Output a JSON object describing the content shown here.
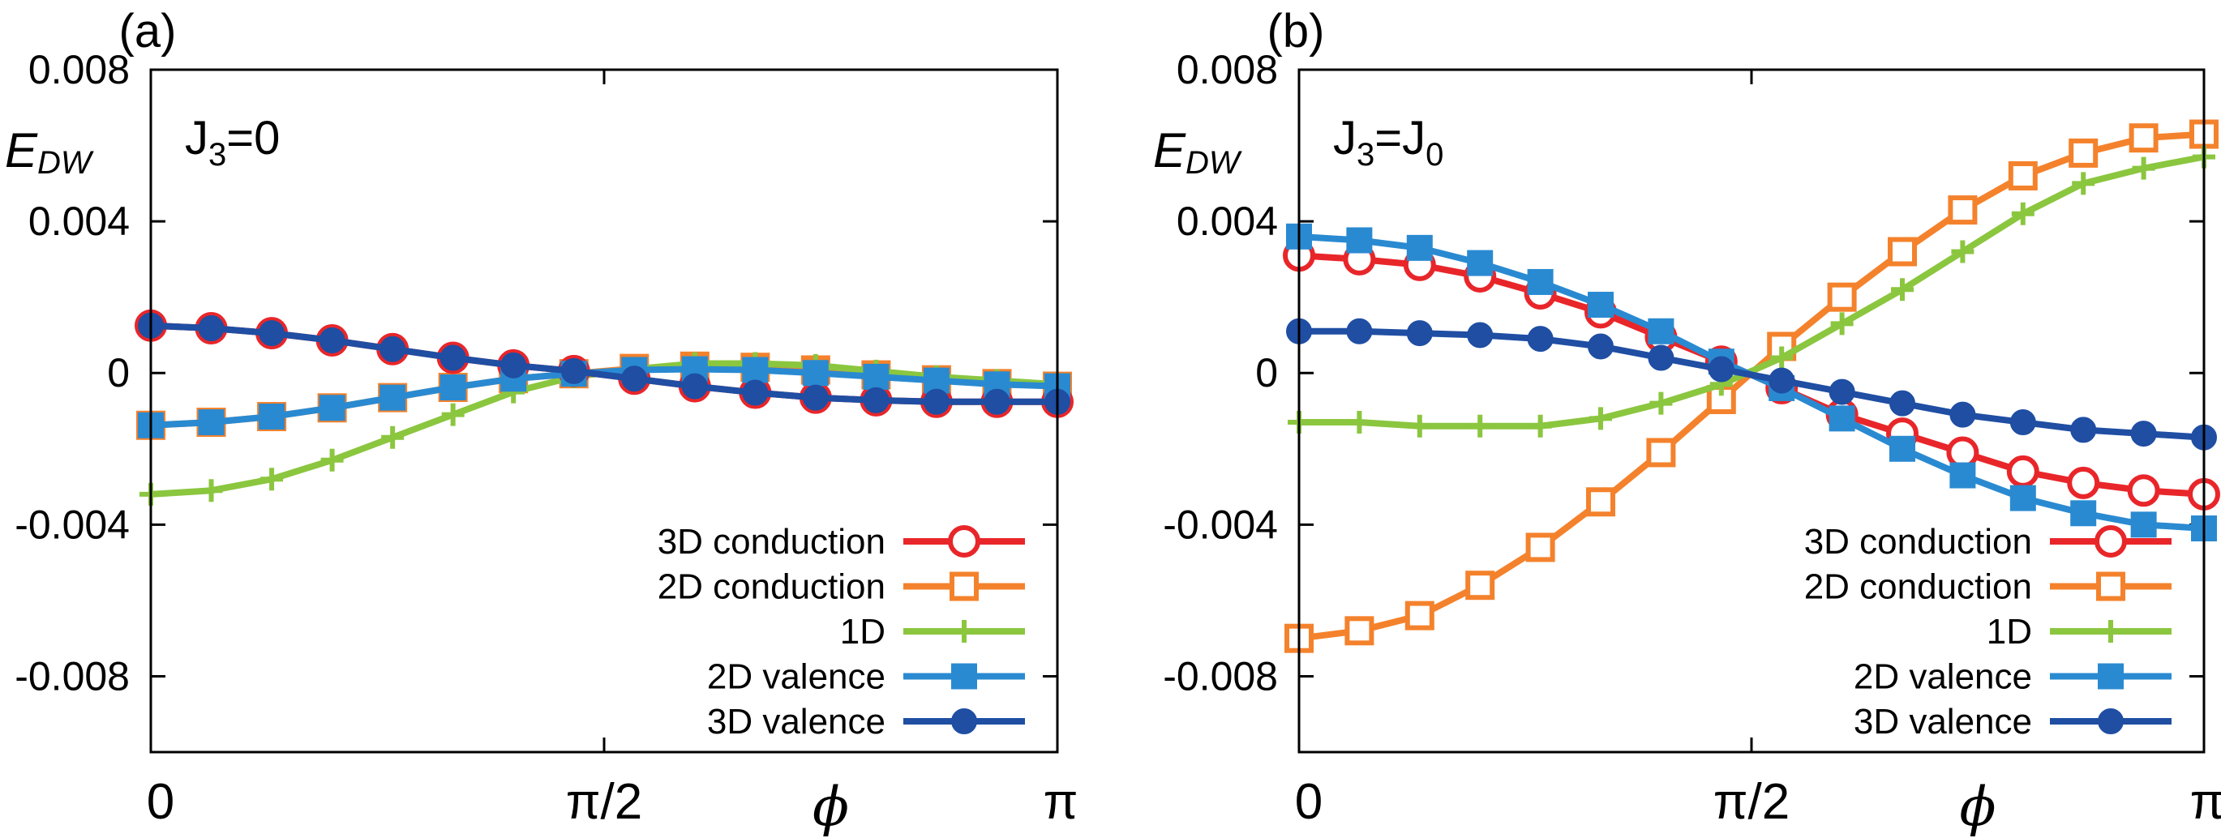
{
  "chart_data": [
    {
      "type": "line",
      "panel_label": "(a)",
      "annotation": {
        "main": "J",
        "sub": "3",
        "rest": "=0"
      },
      "ylabel": {
        "main": "E",
        "sub": "DW"
      },
      "xlabel": "ϕ",
      "xlim": [
        0,
        3.14159
      ],
      "ylim": [
        -0.01,
        0.008
      ],
      "xticks": [
        {
          "value": 0,
          "label": "0"
        },
        {
          "value": 1.5708,
          "label": "π/2"
        },
        {
          "value": 3.14159,
          "label": "π"
        }
      ],
      "yticks": [
        {
          "value": 0.008,
          "label": "0.008"
        },
        {
          "value": 0.004,
          "label": "0.004"
        },
        {
          "value": 0,
          "label": "0"
        },
        {
          "value": -0.004,
          "label": "-0.004"
        },
        {
          "value": -0.008,
          "label": "-0.008"
        }
      ],
      "x": [
        0,
        0.2094,
        0.4189,
        0.6283,
        0.8378,
        1.0472,
        1.2566,
        1.4661,
        1.6755,
        1.885,
        2.0944,
        2.3038,
        2.5133,
        2.7227,
        2.9322,
        3.1416
      ],
      "series": [
        {
          "name": "3D conduction",
          "color": "#e8262a",
          "marker": "open-circle",
          "values": [
            0.00125,
            0.00118,
            0.00105,
            0.00086,
            0.00063,
            0.0004,
            0.0002,
            5e-05,
            -0.00015,
            -0.00035,
            -0.00052,
            -0.00065,
            -0.00072,
            -0.00076,
            -0.00076,
            -0.00076
          ]
        },
        {
          "name": "2D conduction",
          "color": "#f4822c",
          "marker": "open-square",
          "values": [
            -0.00138,
            -0.0013,
            -0.00115,
            -0.00092,
            -0.00065,
            -0.00038,
            -0.00015,
            -2e-05,
            0.00012,
            0.00018,
            0.00015,
            8e-05,
            -5e-05,
            -0.00018,
            -0.00028,
            -0.00035
          ]
        },
        {
          "name": "1D",
          "color": "#8bc63f",
          "marker": "plus",
          "values": [
            -0.0032,
            -0.0031,
            -0.0028,
            -0.0023,
            -0.0017,
            -0.0011,
            -0.0005,
            -0.0001,
            0.0001,
            0.00025,
            0.00025,
            0.0002,
            5e-05,
            -0.0001,
            -0.0002,
            -0.0003
          ]
        },
        {
          "name": "2D valence",
          "color": "#2a8ad1",
          "marker": "filled-square",
          "values": [
            -0.00138,
            -0.0013,
            -0.00115,
            -0.00092,
            -0.00065,
            -0.00038,
            -0.00015,
            -2e-05,
            8e-05,
            0.0001,
            8e-05,
            0.0,
            -0.0001,
            -0.0002,
            -0.0003,
            -0.00035
          ]
        },
        {
          "name": "3D valence",
          "color": "#1f4ea3",
          "marker": "filled-circle",
          "values": [
            0.00125,
            0.00118,
            0.00105,
            0.00086,
            0.00063,
            0.0004,
            0.0002,
            5e-05,
            -0.00015,
            -0.00035,
            -0.00052,
            -0.00065,
            -0.00072,
            -0.00076,
            -0.00076,
            -0.00076
          ]
        }
      ]
    },
    {
      "type": "line",
      "panel_label": "(b)",
      "annotation": {
        "main": "J",
        "sub": "3",
        "rest": "=J",
        "sub2": "0"
      },
      "ylabel": {
        "main": "E",
        "sub": "DW"
      },
      "xlabel": "ϕ",
      "xlim": [
        0,
        3.14159
      ],
      "ylim": [
        -0.01,
        0.008
      ],
      "xticks": [
        {
          "value": 0,
          "label": "0"
        },
        {
          "value": 1.5708,
          "label": "π/2"
        },
        {
          "value": 3.14159,
          "label": "π"
        }
      ],
      "yticks": [
        {
          "value": 0.008,
          "label": "0.008"
        },
        {
          "value": 0.004,
          "label": "0.004"
        },
        {
          "value": 0,
          "label": "0"
        },
        {
          "value": -0.004,
          "label": "-0.004"
        },
        {
          "value": -0.008,
          "label": "-0.008"
        }
      ],
      "x": [
        0,
        0.2094,
        0.4189,
        0.6283,
        0.8378,
        1.0472,
        1.2566,
        1.4661,
        1.6755,
        1.885,
        2.0944,
        2.3038,
        2.5133,
        2.7227,
        2.9322,
        3.1416
      ],
      "series": [
        {
          "name": "3D conduction",
          "color": "#e8262a",
          "marker": "open-circle",
          "values": [
            0.0031,
            0.003,
            0.00285,
            0.00255,
            0.0021,
            0.0016,
            0.00095,
            0.0003,
            -0.0004,
            -0.0011,
            -0.0016,
            -0.0021,
            -0.0026,
            -0.0029,
            -0.0031,
            -0.0032
          ]
        },
        {
          "name": "2D conduction",
          "color": "#f4822c",
          "marker": "open-square",
          "values": [
            -0.007,
            -0.0068,
            -0.0064,
            -0.0056,
            -0.0046,
            -0.0034,
            -0.0021,
            -0.0007,
            0.0007,
            0.002,
            0.0032,
            0.0043,
            0.0052,
            0.0058,
            0.0062,
            0.0063
          ]
        },
        {
          "name": "1D",
          "color": "#8bc63f",
          "marker": "plus",
          "values": [
            -0.0013,
            -0.0013,
            -0.0014,
            -0.0014,
            -0.0014,
            -0.0012,
            -0.0008,
            -0.0003,
            0.0004,
            0.0013,
            0.0022,
            0.0032,
            0.0042,
            0.005,
            0.0054,
            0.0057
          ]
        },
        {
          "name": "2D valence",
          "color": "#2a8ad1",
          "marker": "filled-square",
          "values": [
            0.0036,
            0.0035,
            0.0033,
            0.0029,
            0.0024,
            0.0018,
            0.0011,
            0.0003,
            -0.0004,
            -0.0012,
            -0.002,
            -0.0027,
            -0.0033,
            -0.0037,
            -0.004,
            -0.0041
          ]
        },
        {
          "name": "3D valence",
          "color": "#1f4ea3",
          "marker": "filled-circle",
          "values": [
            0.0011,
            0.0011,
            0.00105,
            0.001,
            0.0009,
            0.0007,
            0.0004,
            0.0001,
            -0.0002,
            -0.0005,
            -0.0008,
            -0.0011,
            -0.0013,
            -0.0015,
            -0.0016,
            -0.0017
          ]
        }
      ]
    }
  ]
}
